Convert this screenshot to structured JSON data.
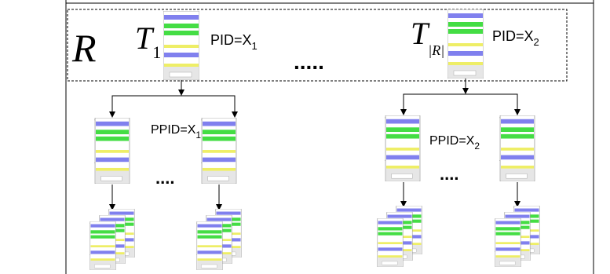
{
  "set_label": "R",
  "ellipsis": ".....",
  "tasks": [
    {
      "name": "T",
      "subscript": "1",
      "pid": "PID=X",
      "pid_subscript": "1",
      "children_label": "PPID=X",
      "children_subscript": "1",
      "children_ellipsis": "...."
    },
    {
      "name": "T",
      "subscript": "|R|",
      "pid": "PID=X",
      "pid_subscript": "2",
      "children_label": "PPID=X",
      "children_subscript": "2",
      "children_ellipsis": "...."
    }
  ]
}
